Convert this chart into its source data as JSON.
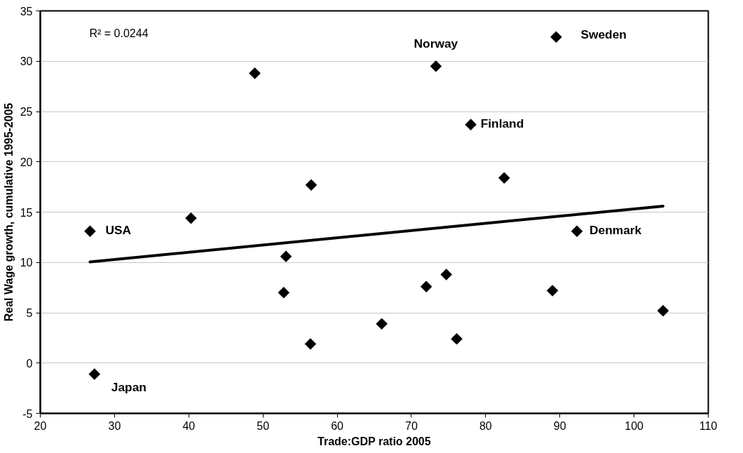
{
  "chart_data": {
    "type": "scatter",
    "xlabel": "Trade:GDP ratio 2005",
    "ylabel": "Real Wage growth, cumulative 1995-2005",
    "xlim": [
      20,
      110
    ],
    "xticks": [
      20,
      30,
      40,
      50,
      60,
      70,
      80,
      90,
      100,
      110
    ],
    "ylim": [
      -5,
      35
    ],
    "yticks": [
      -5,
      0,
      5,
      10,
      15,
      20,
      25,
      30,
      35
    ],
    "grid": "y",
    "marker": "diamond",
    "series": [
      {
        "color": "#000000",
        "x": [
          26.7,
          27.3,
          40.3,
          48.9,
          52.8,
          53.1,
          56.4,
          56.5,
          66.0,
          72.0,
          74.7,
          76.1,
          73.3,
          78.0,
          82.5,
          89.0,
          89.5,
          92.3,
          103.9
        ],
        "values": [
          13.1,
          -1.1,
          14.4,
          28.8,
          7.0,
          10.6,
          1.9,
          17.7,
          3.9,
          7.6,
          8.8,
          2.4,
          29.5,
          23.7,
          18.4,
          7.2,
          32.4,
          13.1,
          5.2
        ]
      },
      {
        "type": "line",
        "color": "#000000",
        "marker": "none",
        "x": [
          26.7,
          103.9
        ],
        "values": [
          10.05,
          15.6
        ]
      }
    ],
    "annotations": [
      "R² = 0.0244",
      {
        "text": "USA",
        "x": 26.7,
        "y": 13.1
      },
      {
        "text": "Japan",
        "x": 27.3,
        "y": -1.1
      },
      {
        "text": "Norway",
        "x": 73.3,
        "y": 29.5
      },
      {
        "text": "Sweden",
        "x": 89.5,
        "y": 32.4
      },
      {
        "text": "Finland",
        "x": 78.0,
        "y": 23.7
      },
      {
        "text": "Denmark",
        "x": 92.3,
        "y": 13.1
      }
    ]
  }
}
